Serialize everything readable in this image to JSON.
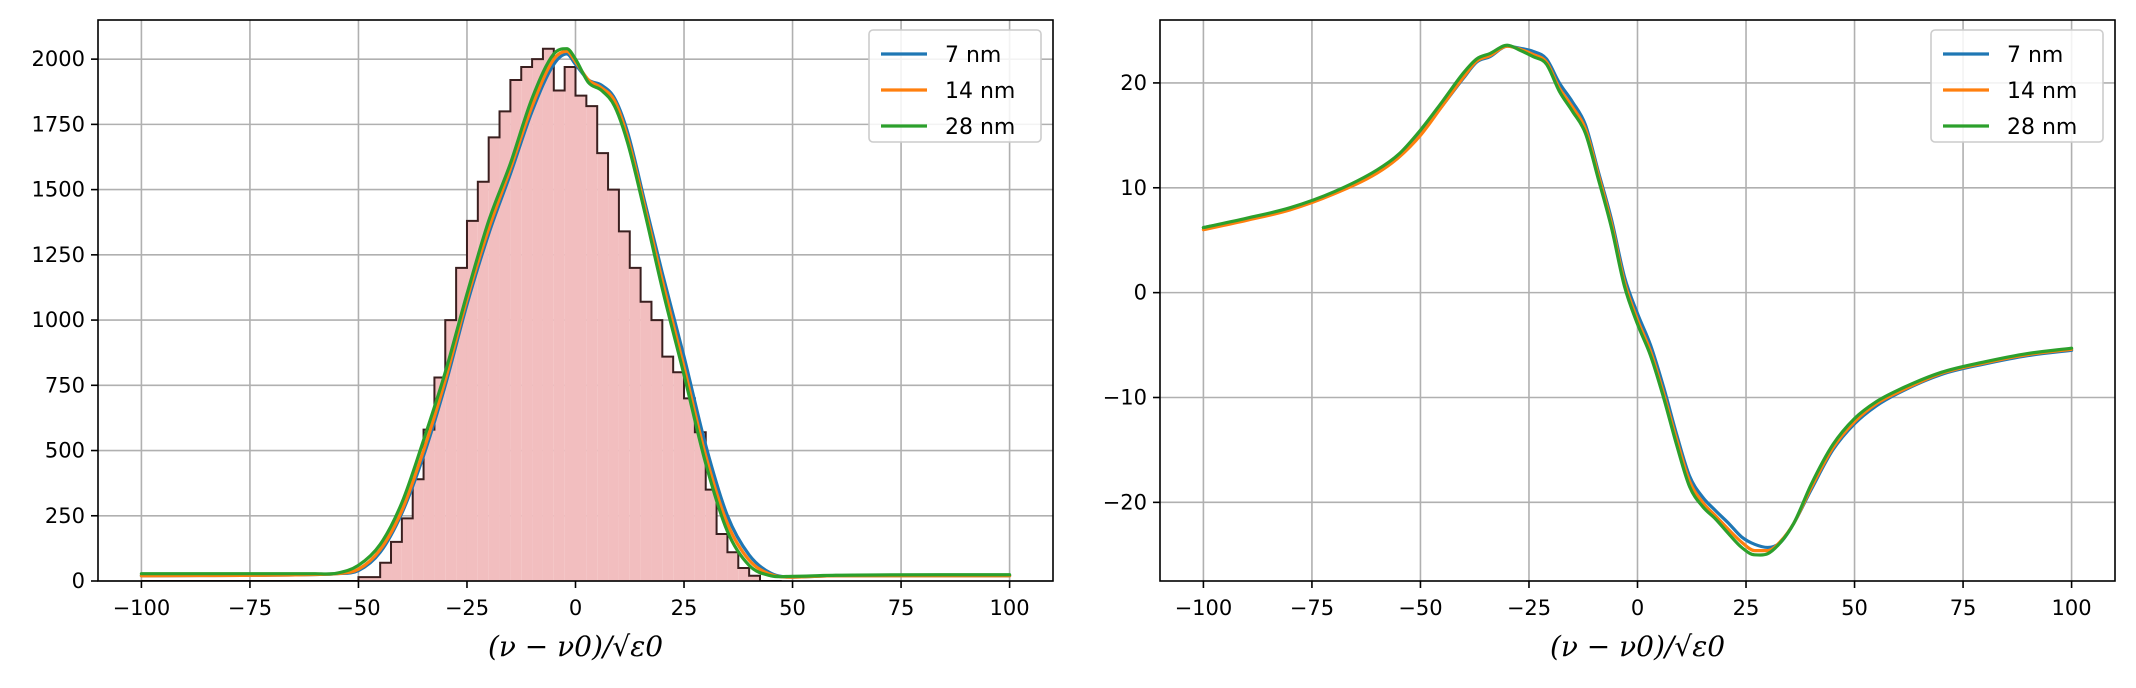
{
  "chart_data": [
    {
      "type": "line",
      "title": "",
      "xlabel": "(ν − ν0)/√ε0",
      "ylabel": "",
      "xlim": [
        -110,
        110
      ],
      "ylim": [
        0,
        2150
      ],
      "xticks": [
        -100,
        -75,
        -50,
        -25,
        0,
        25,
        50,
        75,
        100
      ],
      "yticks": [
        0,
        250,
        500,
        750,
        1000,
        1250,
        1500,
        1750,
        2000
      ],
      "grid": true,
      "legend": "top-right",
      "histogram": {
        "bin_edges": [
          -100,
          -95,
          -90,
          -85,
          -80,
          -75,
          -70,
          -65,
          -60,
          -55,
          -50,
          -45,
          -42.5,
          -40,
          -37.5,
          -35,
          -32.5,
          -30,
          -27.5,
          -25,
          -22.5,
          -20,
          -17.5,
          -15,
          -12.5,
          -10,
          -7.5,
          -5,
          -2.5,
          0,
          2.5,
          5,
          7.5,
          10,
          12.5,
          15,
          17.5,
          20,
          22.5,
          25,
          27.5,
          30,
          32.5,
          35,
          37.5,
          40,
          42.5,
          45,
          47.5
        ],
        "counts": [
          0,
          0,
          0,
          0,
          0,
          0,
          0,
          0,
          0,
          0,
          15,
          70,
          150,
          240,
          390,
          580,
          780,
          1000,
          1200,
          1380,
          1530,
          1700,
          1800,
          1920,
          1970,
          2000,
          2040,
          1880,
          1970,
          1860,
          1820,
          1640,
          1500,
          1340,
          1200,
          1070,
          1000,
          860,
          800,
          700,
          570,
          350,
          180,
          110,
          50,
          20,
          0,
          0
        ],
        "fill_color": "#f2bebf",
        "edge_color": "#3a1f1f"
      },
      "series": [
        {
          "name": "7 nm",
          "color": "#1f77b4",
          "x": [
            -100,
            -60,
            -55,
            -50,
            -45,
            -40,
            -35,
            -30,
            -25,
            -20,
            -15,
            -10,
            -5,
            -2,
            0,
            3,
            6,
            9,
            12,
            16,
            20,
            25,
            30,
            35,
            40,
            45,
            50,
            60,
            100
          ],
          "y": [
            20,
            25,
            28,
            40,
            110,
            260,
            480,
            750,
            1060,
            1330,
            1560,
            1800,
            1980,
            2020,
            1980,
            1920,
            1900,
            1850,
            1720,
            1450,
            1180,
            860,
            520,
            250,
            100,
            30,
            15,
            20,
            20
          ]
        },
        {
          "name": "14 nm",
          "color": "#ff7f0e",
          "x": [
            -100,
            -60,
            -55,
            -50,
            -45,
            -40,
            -35,
            -30,
            -25,
            -20,
            -15,
            -10,
            -5,
            -2,
            0,
            3,
            6,
            9,
            12,
            16,
            20,
            25,
            30,
            35,
            40,
            45,
            50,
            60,
            100
          ],
          "y": [
            20,
            25,
            28,
            45,
            120,
            270,
            500,
            770,
            1080,
            1350,
            1580,
            1820,
            2000,
            2030,
            1990,
            1920,
            1890,
            1840,
            1700,
            1430,
            1150,
            820,
            480,
            220,
            80,
            25,
            15,
            20,
            20
          ]
        },
        {
          "name": "28 nm",
          "color": "#2ca02c",
          "x": [
            -100,
            -60,
            -55,
            -50,
            -45,
            -40,
            -35,
            -30,
            -25,
            -20,
            -15,
            -10,
            -5,
            -2,
            0,
            3,
            6,
            9,
            12,
            16,
            20,
            25,
            30,
            35,
            40,
            45,
            50,
            60,
            100
          ],
          "y": [
            28,
            28,
            30,
            60,
            140,
            300,
            540,
            800,
            1100,
            1380,
            1600,
            1850,
            2020,
            2040,
            2000,
            1910,
            1880,
            1820,
            1680,
            1410,
            1120,
            790,
            450,
            190,
            60,
            20,
            18,
            22,
            24
          ]
        }
      ]
    },
    {
      "type": "line",
      "title": "",
      "xlabel": "(ν − ν0)/√ε0",
      "ylabel": "",
      "xlim": [
        -110,
        110
      ],
      "ylim": [
        -27.5,
        26
      ],
      "xticks": [
        -100,
        -75,
        -50,
        -25,
        0,
        25,
        50,
        75,
        100
      ],
      "yticks": [
        -20,
        -10,
        0,
        10,
        20
      ],
      "grid": true,
      "legend": "top-right",
      "series": [
        {
          "name": "7 nm",
          "color": "#1f77b4",
          "x": [
            -100,
            -90,
            -80,
            -70,
            -60,
            -55,
            -50,
            -45,
            -40,
            -37,
            -34,
            -30,
            -27,
            -24,
            -21,
            -18,
            -15,
            -12,
            -9,
            -6,
            -3,
            0,
            3,
            6,
            9,
            12,
            15,
            18,
            21,
            24,
            27,
            30,
            33,
            36,
            40,
            45,
            50,
            55,
            60,
            70,
            80,
            90,
            100
          ],
          "y": [
            6.2,
            7.0,
            8.0,
            9.5,
            11.5,
            13.0,
            15.2,
            17.8,
            20.5,
            22.0,
            22.5,
            23.5,
            23.3,
            23.0,
            22.3,
            20.0,
            18.2,
            16.0,
            11.5,
            7.0,
            1.5,
            -2.0,
            -5.0,
            -9.0,
            -13.5,
            -17.5,
            -19.5,
            -20.8,
            -22.0,
            -23.3,
            -24.0,
            -24.3,
            -23.8,
            -22.0,
            -18.8,
            -15.0,
            -12.5,
            -10.8,
            -9.6,
            -7.8,
            -6.8,
            -6.0,
            -5.5
          ]
        },
        {
          "name": "14 nm",
          "color": "#ff7f0e",
          "x": [
            -100,
            -90,
            -80,
            -70,
            -60,
            -55,
            -50,
            -45,
            -40,
            -37,
            -34,
            -30,
            -27,
            -24,
            -21,
            -18,
            -15,
            -12,
            -9,
            -6,
            -3,
            0,
            3,
            6,
            9,
            12,
            15,
            18,
            21,
            24,
            27,
            30,
            33,
            36,
            40,
            45,
            50,
            55,
            60,
            70,
            80,
            90,
            100
          ],
          "y": [
            6.0,
            6.9,
            7.9,
            9.4,
            11.4,
            12.9,
            15.0,
            17.8,
            20.6,
            22.1,
            22.6,
            23.5,
            23.2,
            22.7,
            22.0,
            19.5,
            17.7,
            15.6,
            11.2,
            6.6,
            1.0,
            -2.6,
            -5.6,
            -9.6,
            -14.0,
            -18.0,
            -20.0,
            -21.3,
            -22.6,
            -23.8,
            -24.6,
            -24.6,
            -23.7,
            -22.0,
            -18.6,
            -14.8,
            -12.3,
            -10.6,
            -9.5,
            -7.7,
            -6.7,
            -5.9,
            -5.4
          ]
        },
        {
          "name": "28 nm",
          "color": "#2ca02c",
          "x": [
            -100,
            -90,
            -80,
            -70,
            -60,
            -55,
            -50,
            -45,
            -40,
            -37,
            -34,
            -30,
            -27,
            -24,
            -21,
            -18,
            -15,
            -12,
            -9,
            -6,
            -3,
            0,
            3,
            6,
            9,
            12,
            15,
            18,
            21,
            24,
            27,
            30,
            33,
            36,
            40,
            45,
            50,
            55,
            60,
            70,
            80,
            90,
            100
          ],
          "y": [
            6.2,
            7.1,
            8.1,
            9.6,
            11.7,
            13.2,
            15.5,
            18.2,
            21.0,
            22.3,
            22.8,
            23.6,
            23.1,
            22.5,
            21.8,
            19.2,
            17.3,
            15.2,
            10.8,
            6.2,
            0.6,
            -3.0,
            -6.0,
            -10.0,
            -14.5,
            -18.5,
            -20.4,
            -21.6,
            -23.0,
            -24.3,
            -25.0,
            -24.9,
            -23.8,
            -22.0,
            -18.3,
            -14.5,
            -12.0,
            -10.4,
            -9.3,
            -7.6,
            -6.6,
            -5.8,
            -5.3
          ]
        }
      ]
    }
  ]
}
